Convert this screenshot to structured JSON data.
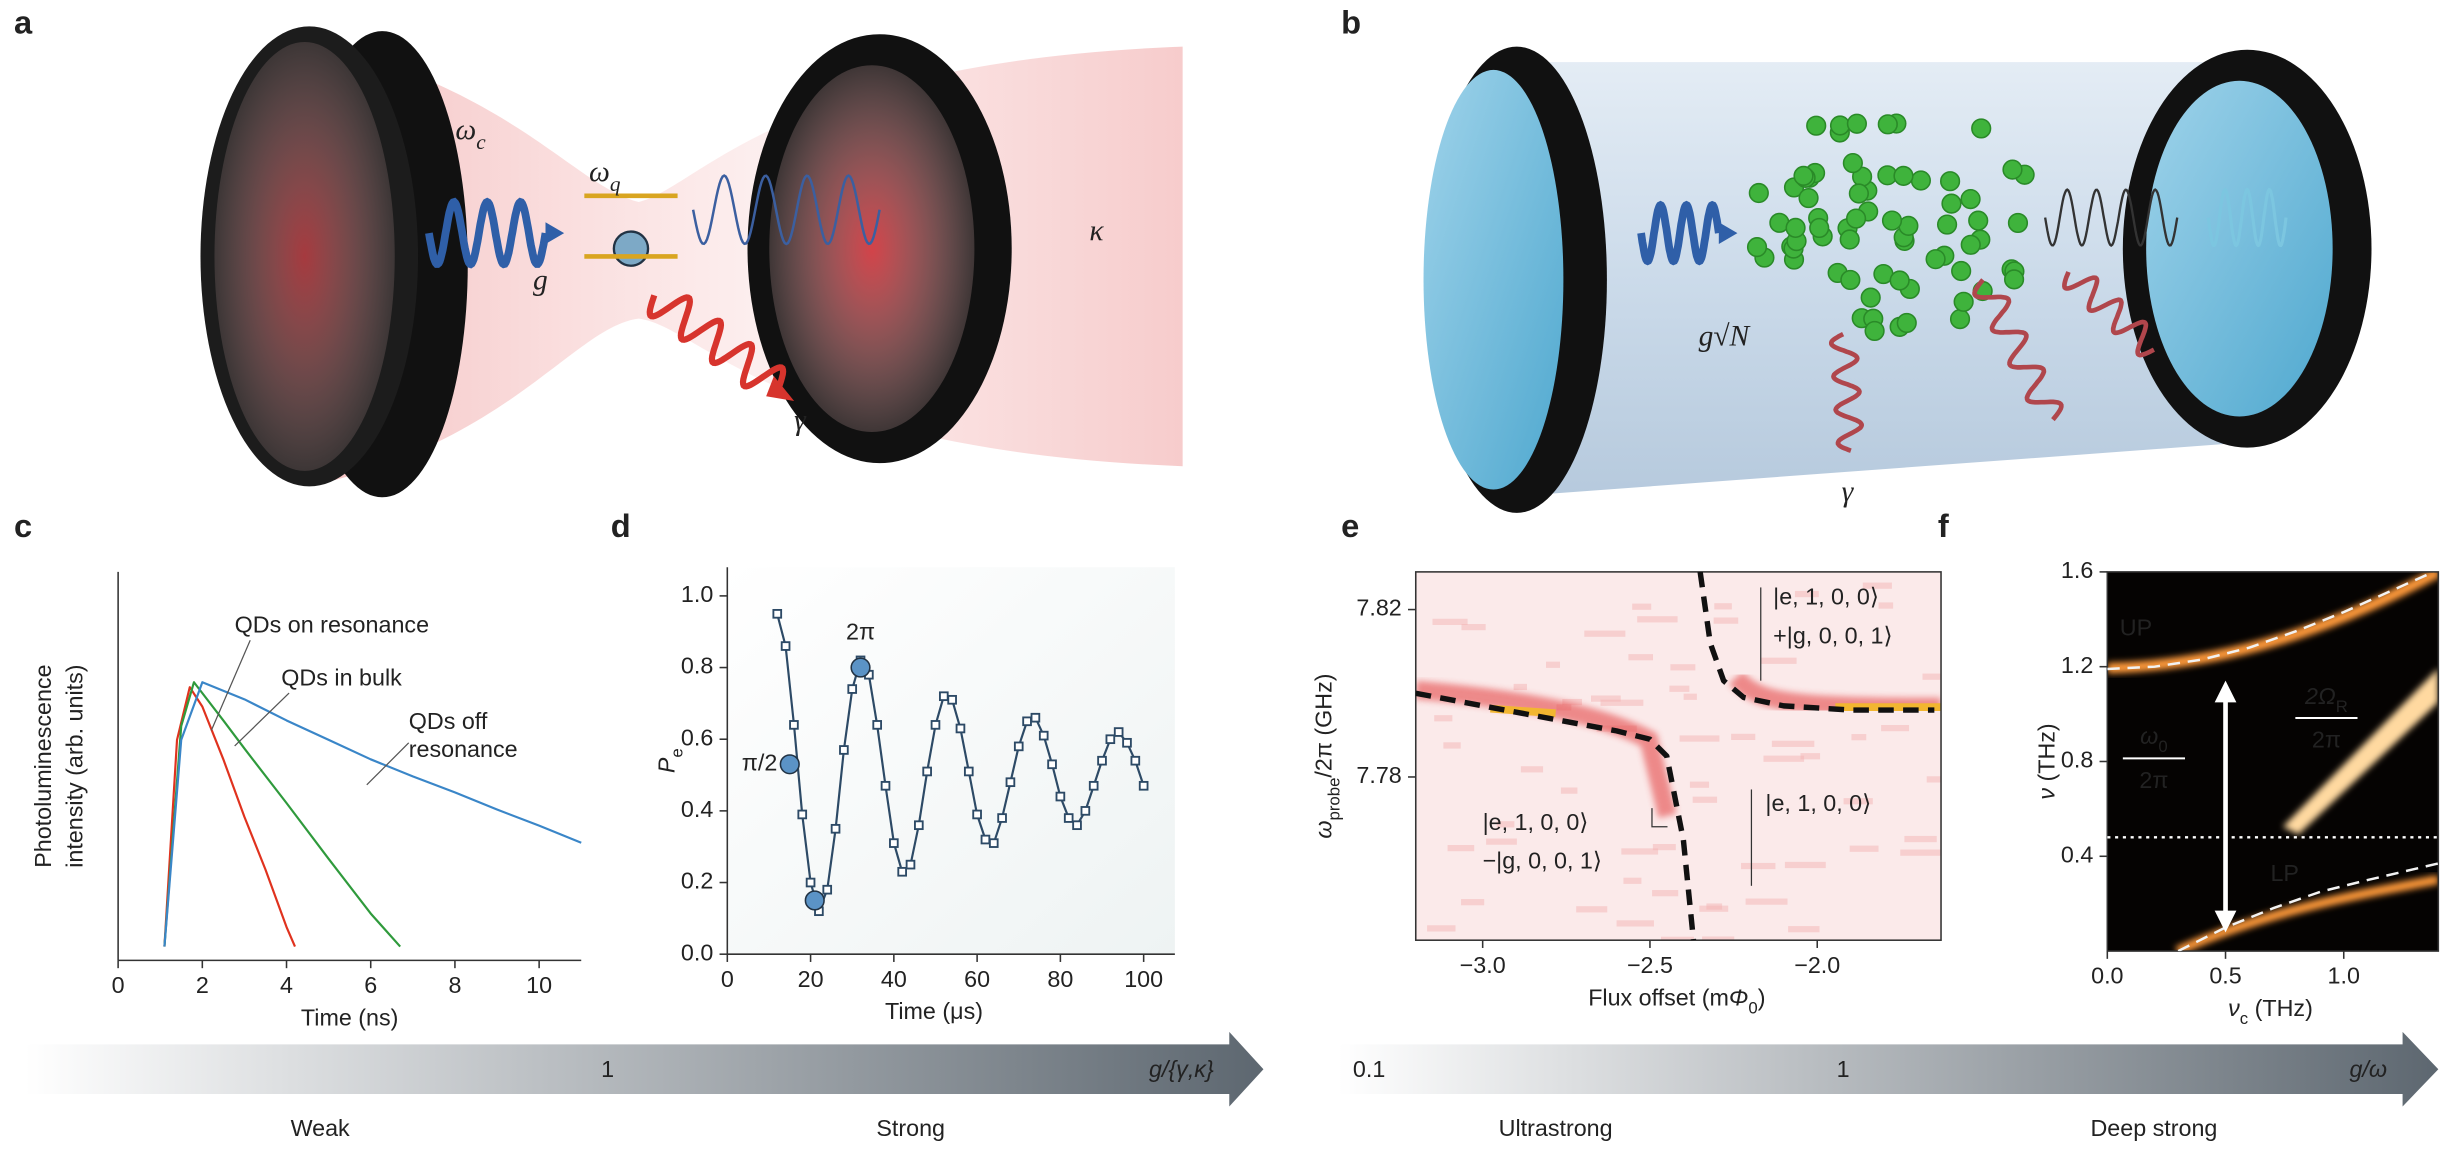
{
  "figure": {
    "panels": [
      "a",
      "b",
      "c",
      "d",
      "e",
      "f"
    ],
    "illustrations": {
      "a": {
        "cavity_frequency": [
          "ω",
          "c"
        ],
        "qubit_frequency": [
          "ω",
          "q"
        ],
        "coupling": "g",
        "cavity_loss": "κ",
        "decay": "γ"
      },
      "b": {
        "coupling": "g√N",
        "decay": "γ"
      }
    },
    "scales": [
      {
        "mark": "1",
        "axis": "g/{γ,κ}",
        "regimes": [
          "Weak",
          "Strong"
        ]
      },
      {
        "start": "0.1",
        "mark": "1",
        "axis": "g/ω",
        "regimes": [
          "Ultrastrong",
          "Deep strong"
        ]
      }
    ]
  },
  "chart_data": [
    {
      "type": "line",
      "xlabel": "Time (ns)",
      "ylabel": [
        "Photoluminescence",
        "intensity (arb. units)"
      ],
      "xlim": [
        0,
        11
      ],
      "xticks": [
        0,
        2,
        4,
        6,
        8,
        10
      ],
      "ylim": [
        0.003,
        10
      ],
      "log_y": true,
      "series": [
        {
          "name": "QDs on resonance",
          "color": "#e0321e",
          "x": [
            1.1,
            1.4,
            1.7,
            2,
            2.5,
            3,
            3.5,
            4,
            4.2
          ],
          "values": [
            0.004,
            0.3,
            0.9,
            0.6,
            0.2,
            0.06,
            0.02,
            0.006,
            0.004
          ]
        },
        {
          "name": "QDs in bulk",
          "color": "#2f9a3c",
          "x": [
            1.1,
            1.5,
            1.8,
            2.5,
            3,
            4,
            5,
            6,
            6.7
          ],
          "values": [
            0.004,
            0.4,
            1,
            0.45,
            0.25,
            0.08,
            0.025,
            0.008,
            0.004
          ]
        },
        {
          "name": "QDs off resonance",
          "color": "#3a86c8",
          "x": [
            1.1,
            1.5,
            2,
            3,
            4,
            5,
            6,
            7,
            8,
            9,
            10,
            11
          ],
          "values": [
            0.004,
            0.3,
            1,
            0.7,
            0.45,
            0.3,
            0.2,
            0.14,
            0.1,
            0.07,
            0.05,
            0.035
          ]
        }
      ]
    },
    {
      "type": "scatter",
      "xlabel": [
        "Time (",
        "μ",
        "s)"
      ],
      "ylabel": [
        "P",
        "e"
      ],
      "xlim": [
        0,
        107.5
      ],
      "xticks": [
        0,
        20,
        40,
        60,
        80,
        100
      ],
      "ylim": [
        0,
        1.08
      ],
      "yticks": [
        {
          "value": 0,
          "label": "0.0"
        },
        {
          "value": 0.2,
          "label": "0.2"
        },
        {
          "value": 0.4,
          "label": "0.4"
        },
        {
          "value": 0.6,
          "label": "0.6"
        },
        {
          "value": 0.8,
          "label": "0.8"
        },
        {
          "value": 1,
          "label": "1.0"
        }
      ],
      "x": [
        12,
        14,
        16,
        18,
        20,
        22,
        24,
        26,
        28,
        30,
        32,
        34,
        36,
        38,
        40,
        42,
        44,
        46,
        48,
        50,
        52,
        54,
        56,
        58,
        60,
        62,
        64,
        66,
        68,
        70,
        72,
        74,
        76,
        78,
        80,
        82,
        84,
        86,
        88,
        90,
        92,
        94,
        96,
        98,
        100
      ],
      "series": [
        {
          "color": "#2d4a66",
          "values": [
            0.95,
            0.86,
            0.64,
            0.39,
            0.2,
            0.12,
            0.18,
            0.35,
            0.57,
            0.74,
            0.82,
            0.78,
            0.64,
            0.47,
            0.31,
            0.23,
            0.25,
            0.36,
            0.51,
            0.64,
            0.72,
            0.71,
            0.63,
            0.51,
            0.39,
            0.32,
            0.31,
            0.38,
            0.48,
            0.58,
            0.65,
            0.66,
            0.61,
            0.53,
            0.44,
            0.38,
            0.36,
            0.4,
            0.47,
            0.54,
            0.6,
            0.62,
            0.59,
            0.54,
            0.47
          ]
        }
      ],
      "highlights": {
        "color": "#5b93c6",
        "x": [
          15,
          21,
          32
        ],
        "values": [
          0.53,
          0.15,
          0.8
        ],
        "labels": [
          "π/2",
          null,
          "2π"
        ]
      }
    },
    {
      "type": "line",
      "xlabel": [
        "Flux offset (m",
        "Φ",
        "0",
        ")"
      ],
      "ylabel": [
        "ω",
        "probe",
        "/2π (GHz)"
      ],
      "xlim": [
        -3.2,
        -1.63
      ],
      "xticks": [
        {
          "value": -3,
          "label": "−3.0"
        },
        {
          "value": -2.5,
          "label": "−2.5"
        },
        {
          "value": -2,
          "label": "−2.0"
        }
      ],
      "ylim": [
        7.741,
        7.829
      ],
      "yticks": [
        7.78,
        7.82
      ],
      "series": [
        {
          "color": "#111111",
          "x": [
            -3.2,
            -3,
            -2.8,
            -2.6,
            -2.5,
            -2.45,
            -2.4,
            -2.37
          ],
          "values": [
            7.8,
            7.797,
            7.794,
            7.791,
            7.789,
            7.785,
            7.765,
            7.741
          ]
        },
        {
          "color": "#111111",
          "x": [
            -2.35,
            -2.32,
            -2.28,
            -2.22,
            -2.1,
            -1.9,
            -1.65
          ],
          "values": [
            7.829,
            7.812,
            7.803,
            7.799,
            7.797,
            7.796,
            7.796
          ]
        }
      ],
      "annotations": [
        "|e, 1, 0, 0⟩",
        "+|g, 0, 0, 1⟩",
        "|e, 1, 0, 0⟩",
        "−|g, 0, 0, 1⟩",
        "|e, 1, 0, 0⟩"
      ]
    },
    {
      "type": "line",
      "xlabel": [
        "ν",
        "c",
        " (THz)"
      ],
      "ylabel": [
        "ν",
        " (THz)"
      ],
      "xlim": [
        0,
        1.4
      ],
      "xticks": [
        {
          "value": 0,
          "label": "0.0"
        },
        0.5,
        {
          "value": 1,
          "label": "1.0"
        }
      ],
      "ylim": [
        0,
        1.6
      ],
      "yticks": [
        0.4,
        0.8,
        1.2,
        1.6
      ],
      "hline": 0.48,
      "series": [
        {
          "color": "#f2f2f2",
          "x": [
            0,
            0.2,
            0.4,
            0.6,
            0.8,
            1,
            1.2,
            1.38
          ],
          "values": [
            1.19,
            1.2,
            1.23,
            1.28,
            1.35,
            1.43,
            1.52,
            1.6
          ]
        },
        {
          "color": "#f2f2f2",
          "x": [
            0.3,
            0.5,
            0.7,
            0.9,
            1.1,
            1.4
          ],
          "values": [
            0,
            0.1,
            0.18,
            0.25,
            0.3,
            0.37
          ]
        }
      ],
      "branch_labels": [
        "UP",
        "LP"
      ],
      "rabi_label": {
        "num": [
          "2Ω",
          "R"
        ],
        "den": "2π"
      },
      "bare_label": {
        "num": [
          "ω",
          "0"
        ],
        "den": "2π"
      }
    }
  ]
}
